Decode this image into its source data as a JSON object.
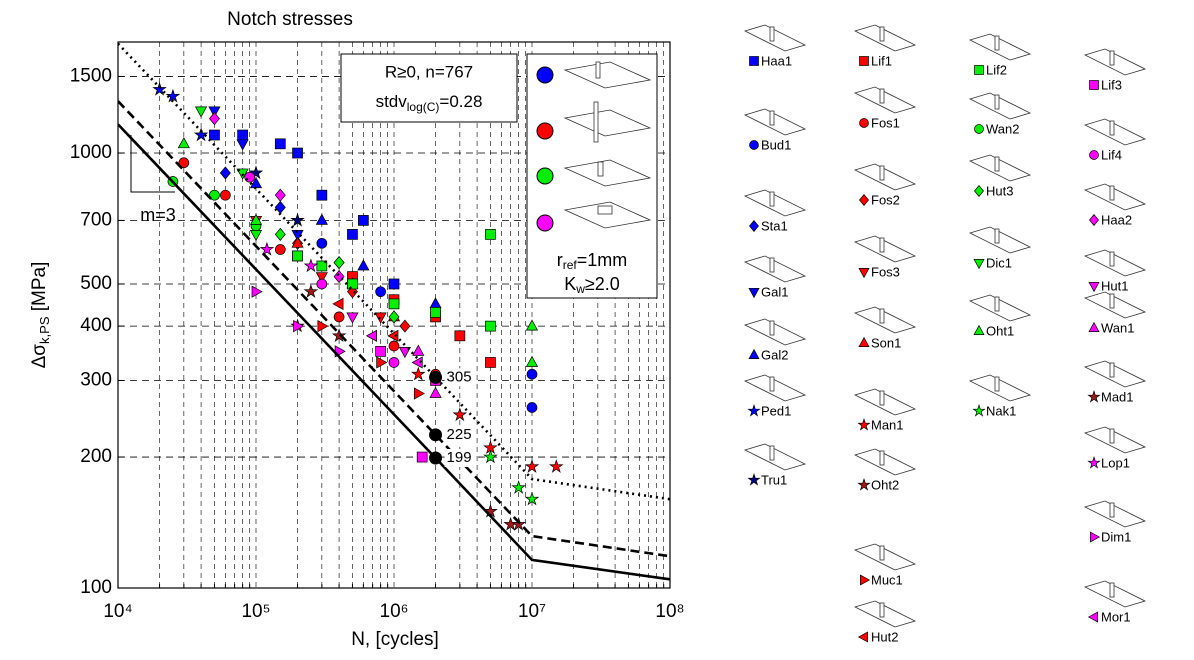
{
  "chart_data": {
    "type": "scatter",
    "title": "Notch stresses",
    "x_label": "N, [cycles]",
    "y_label": {
      "symbol": "Δσ",
      "sub": "k,PS",
      "unit": " [MPa]"
    },
    "log_x": true,
    "log_y": true,
    "grid": true,
    "xlim": [
      10000,
      100000000
    ],
    "ylim": [
      100,
      1800
    ],
    "xticks": [
      {
        "value": 10000,
        "label": "10⁴"
      },
      {
        "value": 100000,
        "label": "10⁵"
      },
      {
        "value": 1000000,
        "label": "10⁶"
      },
      {
        "value": 10000000,
        "label": "10⁷"
      },
      {
        "value": 100000000,
        "label": "10⁸"
      }
    ],
    "xminorticks": [
      20000,
      30000,
      40000,
      50000,
      60000,
      70000,
      80000,
      90000,
      200000,
      300000,
      400000,
      500000,
      600000,
      700000,
      800000,
      900000,
      2000000,
      3000000,
      4000000,
      5000000,
      6000000,
      7000000,
      8000000,
      9000000,
      20000000,
      30000000,
      40000000,
      50000000,
      60000000,
      70000000,
      80000000,
      90000000
    ],
    "yticks": [
      100,
      200,
      300,
      400,
      500,
      700,
      1000,
      1500
    ],
    "stats_box": {
      "line1": "R≥0, n=767",
      "stdv": "stdv",
      "stdv_sub": "log(C)",
      "stdv_value": "=0.28"
    },
    "legend_box": {
      "r": "r",
      "r_sub": "ref",
      "r_value": "=1mm",
      "k": "K",
      "k_sub": "w",
      "k_value": "≥2.0"
    },
    "slope_label": "m=3",
    "reference_points": {
      "x": [
        2000000,
        2000000,
        2000000
      ],
      "values": [
        305,
        225,
        199
      ]
    },
    "curves": [
      {
        "style": "solid",
        "x": [
          10000,
          2000000,
          10000000,
          100000000
        ],
        "values": [
          1164,
          199,
          116,
          104.7
        ]
      },
      {
        "style": "dashed",
        "x": [
          10000,
          2000000,
          10000000,
          100000000
        ],
        "values": [
          1316,
          225,
          131.6,
          118.3
        ]
      },
      {
        "style": "dotted",
        "x": [
          10000,
          2000000,
          10000000,
          100000000
        ],
        "values": [
          1784,
          305,
          178,
          160
        ]
      }
    ],
    "series": [
      {
        "name": "Haa1",
        "marker": "square",
        "color": "#0000ff",
        "x": [
          50000,
          80000,
          150000,
          300000,
          500000,
          1000000,
          600000,
          200000
        ],
        "values": [
          1100,
          1100,
          1050,
          800,
          650,
          500,
          700,
          1000
        ]
      },
      {
        "name": "Bud1",
        "marker": "circle",
        "color": "#0000ff",
        "x": [
          10000000,
          10000000,
          300000,
          800000
        ],
        "values": [
          310,
          260,
          620,
          480
        ]
      },
      {
        "name": "Sta1",
        "marker": "diamond",
        "color": "#0000ff",
        "x": [
          60000,
          150000,
          400000
        ],
        "values": [
          900,
          750,
          560
        ]
      },
      {
        "name": "Gal1",
        "marker": "tri-down",
        "color": "#0000ff",
        "x": [
          50000,
          80000,
          200000
        ],
        "values": [
          1250,
          1050,
          650
        ]
      },
      {
        "name": "Gal2",
        "marker": "tri-up",
        "color": "#0000ff",
        "x": [
          100000,
          300000,
          600000,
          2000000
        ],
        "values": [
          850,
          700,
          550,
          450
        ]
      },
      {
        "name": "Ped1",
        "marker": "star",
        "color": "#0000ff",
        "x": [
          20000,
          25000,
          40000
        ],
        "values": [
          1400,
          1350,
          1100
        ]
      },
      {
        "name": "Tru1",
        "marker": "star",
        "color": "#000080",
        "x": [
          100000,
          200000
        ],
        "values": [
          900,
          700
        ]
      },
      {
        "name": "Lif1",
        "marker": "square",
        "color": "#ff0000",
        "x": [
          200000,
          500000,
          1000000,
          2000000,
          3000000,
          5000000
        ],
        "values": [
          580,
          520,
          460,
          420,
          380,
          330
        ]
      },
      {
        "name": "Fos1",
        "marker": "circle",
        "color": "#ff0000",
        "x": [
          30000,
          60000,
          150000,
          400000,
          1000000,
          2000000
        ],
        "values": [
          950,
          800,
          600,
          420,
          360,
          310
        ]
      },
      {
        "name": "Fos2",
        "marker": "diamond",
        "color": "#ff0000",
        "x": [
          200000,
          500000,
          1200000
        ],
        "values": [
          620,
          480,
          400
        ]
      },
      {
        "name": "Fos3",
        "marker": "tri-down",
        "color": "#ff0000",
        "x": [
          100000,
          300000,
          800000
        ],
        "values": [
          700,
          520,
          420
        ]
      },
      {
        "name": "Son1",
        "marker": "tri-up",
        "color": "#ff0000",
        "x": [
          200000,
          500000,
          1000000
        ],
        "values": [
          620,
          500,
          420
        ]
      },
      {
        "name": "Man1",
        "marker": "star",
        "color": "#ff0000",
        "x": [
          1500000,
          3000000,
          5000000,
          10000000,
          15000000
        ],
        "values": [
          310,
          250,
          210,
          190,
          190
        ]
      },
      {
        "name": "Oht2",
        "marker": "star",
        "color": "#a01818",
        "x": [
          200000,
          400000,
          250000
        ],
        "values": [
          400,
          380,
          480
        ]
      },
      {
        "name": "Muc1",
        "marker": "tri-right",
        "color": "#ff0000",
        "x": [
          300000,
          800000,
          1500000
        ],
        "values": [
          400,
          330,
          280
        ]
      },
      {
        "name": "Hut2",
        "marker": "tri-left",
        "color": "#ff0000",
        "x": [
          400000,
          1000000
        ],
        "values": [
          450,
          380
        ]
      },
      {
        "name": "Lif2",
        "marker": "square",
        "color": "#00ee00",
        "x": [
          200000,
          300000,
          500000,
          1000000,
          2000000,
          5000000,
          5000000
        ],
        "values": [
          580,
          550,
          500,
          450,
          430,
          650,
          400
        ]
      },
      {
        "name": "Wan2",
        "marker": "circle",
        "color": "#00ee00",
        "x": [
          25000,
          50000,
          100000
        ],
        "values": [
          860,
          800,
          680
        ]
      },
      {
        "name": "Hut3",
        "marker": "diamond",
        "color": "#00ee00",
        "x": [
          150000,
          400000,
          1000000
        ],
        "values": [
          650,
          560,
          420
        ]
      },
      {
        "name": "Dic1",
        "marker": "tri-down",
        "color": "#00ee00",
        "x": [
          40000,
          80000,
          100000
        ],
        "values": [
          1250,
          900,
          650
        ]
      },
      {
        "name": "Oht1",
        "marker": "tri-up",
        "color": "#00ee00",
        "x": [
          30000,
          100000,
          10000000,
          10000000
        ],
        "values": [
          1050,
          700,
          400,
          330
        ]
      },
      {
        "name": "Nak1",
        "marker": "star",
        "color": "#00ee00",
        "x": [
          5000000,
          8000000,
          10000000
        ],
        "values": [
          200,
          170,
          160
        ]
      },
      {
        "name": "Lif3",
        "marker": "square",
        "color": "#ff00ff",
        "x": [
          1600000,
          2000000,
          800000
        ],
        "values": [
          200,
          300,
          350
        ]
      },
      {
        "name": "Lif4",
        "marker": "circle",
        "color": "#ff00ff",
        "x": [
          90000,
          300000,
          1000000
        ],
        "values": [
          880,
          500,
          330
        ]
      },
      {
        "name": "Haa2",
        "marker": "diamond",
        "color": "#ff00ff",
        "x": [
          50000,
          150000,
          400000
        ],
        "values": [
          1200,
          800,
          520
        ]
      },
      {
        "name": "Hut1",
        "marker": "tri-down",
        "color": "#ff00ff",
        "x": [
          500000,
          1200000
        ],
        "values": [
          420,
          350
        ]
      },
      {
        "name": "Wan1",
        "marker": "tri-up",
        "color": "#ff00ff",
        "x": [
          1500000,
          2000000
        ],
        "values": [
          350,
          280
        ]
      },
      {
        "name": "Mad1",
        "marker": "star",
        "color": "#a01818",
        "x": [
          5000000,
          7000000,
          8000000
        ],
        "values": [
          150,
          140,
          140
        ]
      },
      {
        "name": "Lop1",
        "marker": "star",
        "color": "#ff00ff",
        "x": [
          120000,
          250000
        ],
        "values": [
          600,
          550
        ]
      },
      {
        "name": "Dim1",
        "marker": "tri-right",
        "color": "#ff00ff",
        "x": [
          100000,
          200000,
          400000
        ],
        "values": [
          480,
          400,
          350
        ]
      },
      {
        "name": "Mor1",
        "marker": "tri-left",
        "color": "#ff00ff",
        "x": [
          700000,
          1500000
        ],
        "values": [
          380,
          330
        ]
      }
    ]
  }
}
